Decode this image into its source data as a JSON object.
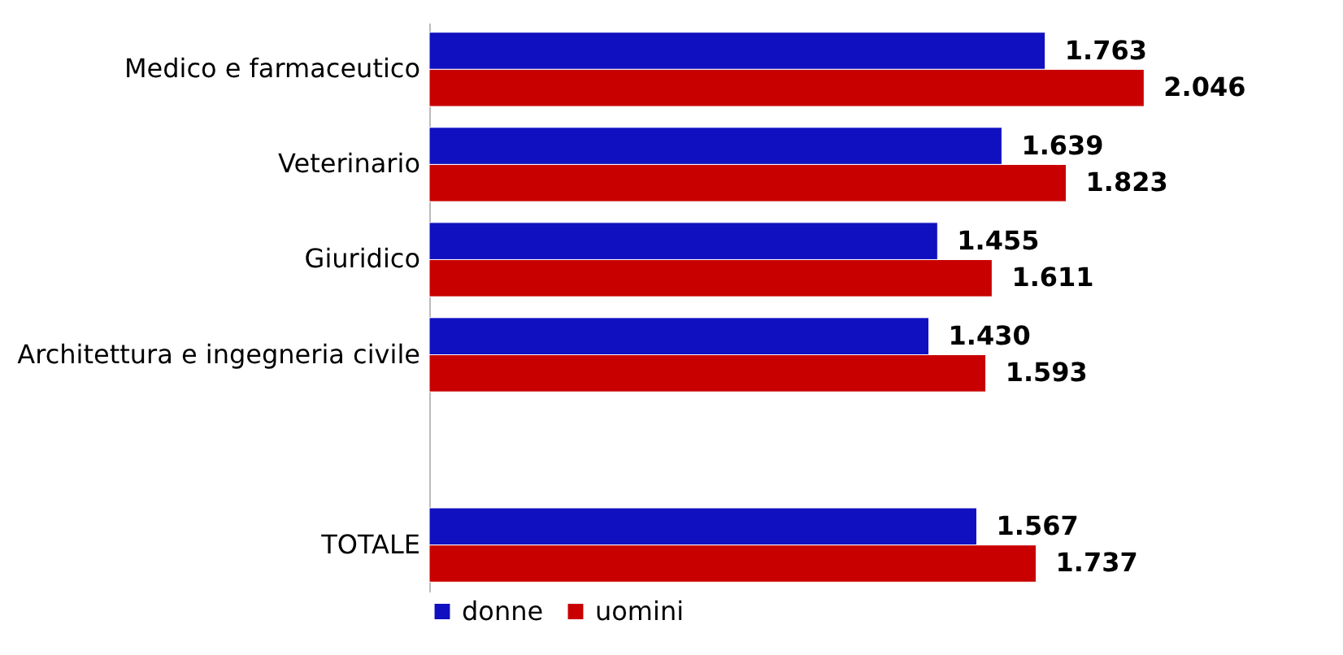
{
  "chart_data": {
    "type": "bar",
    "orientation": "horizontal",
    "categories": [
      "Medico e farmaceutico",
      "Veterinario",
      "Giuridico",
      "Architettura e ingegneria civile",
      null,
      "TOTALE"
    ],
    "series": [
      {
        "name": "donne",
        "color": "#1010c0",
        "values": [
          1763,
          1639,
          1455,
          1430,
          null,
          1567
        ],
        "value_labels": [
          "1.763",
          "1.639",
          "1.455",
          "1.430",
          null,
          "1.567"
        ]
      },
      {
        "name": "uomini",
        "color": "#c80000",
        "values": [
          2046,
          1823,
          1611,
          1593,
          null,
          1737
        ],
        "value_labels": [
          "2.046",
          "1.823",
          "1.611",
          "1.593",
          null,
          "1.737"
        ]
      }
    ],
    "xlim": [
      0,
      2350
    ],
    "legend": "bottom"
  }
}
